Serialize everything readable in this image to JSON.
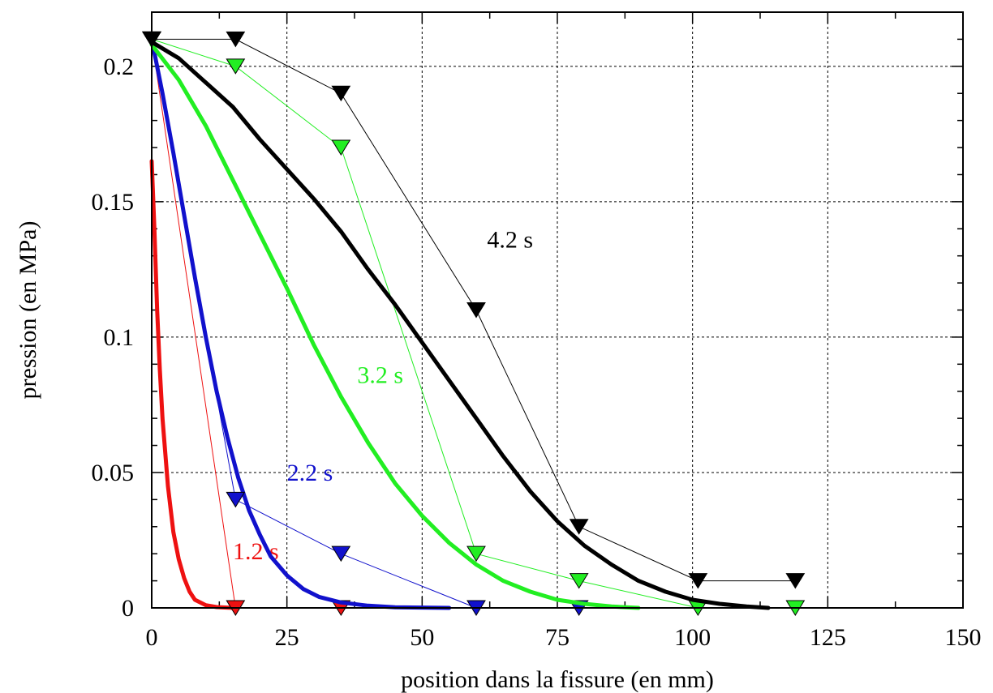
{
  "chart_data": {
    "type": "line",
    "xlabel": "position dans la fissure (en mm)",
    "ylabel": "pression (en MPa)",
    "xlim": [
      0,
      150
    ],
    "ylim": [
      0,
      0.22
    ],
    "xticks": [
      0,
      25,
      50,
      75,
      100,
      125,
      150
    ],
    "xtick_labels": [
      "0",
      "25",
      "50",
      "75",
      "100",
      "125",
      "150"
    ],
    "yticks": [
      0,
      0.05,
      0.1,
      0.15,
      0.2
    ],
    "ytick_labels": [
      "0",
      "0.05",
      "0.1",
      "0.15",
      "0.2"
    ],
    "grid": true,
    "series": [
      {
        "name": "1.2 s",
        "label": "1.2 s",
        "label_at": [
          15,
          0.018
        ],
        "color": "#ee1111",
        "curve": [
          [
            0,
            0.165
          ],
          [
            0.5,
            0.14
          ],
          [
            1,
            0.11
          ],
          [
            1.5,
            0.088
          ],
          [
            2,
            0.07
          ],
          [
            3,
            0.045
          ],
          [
            4,
            0.028
          ],
          [
            5,
            0.018
          ],
          [
            6,
            0.011
          ],
          [
            7,
            0.006
          ],
          [
            8,
            0.003
          ],
          [
            10,
            0.001
          ],
          [
            12,
            0.0003
          ],
          [
            15,
            0
          ]
        ],
        "markers": [
          [
            0,
            0.21
          ],
          [
            15.5,
            0
          ],
          [
            35,
            0
          ]
        ],
        "marker_line": [
          [
            0,
            0.21
          ],
          [
            15.5,
            0
          ]
        ]
      },
      {
        "name": "2.2 s",
        "label": "2.2 s",
        "label_at": [
          25,
          0.047
        ],
        "color": "#1111cc",
        "curve": [
          [
            0,
            0.21
          ],
          [
            2,
            0.19
          ],
          [
            4,
            0.168
          ],
          [
            6,
            0.145
          ],
          [
            8,
            0.122
          ],
          [
            10,
            0.1
          ],
          [
            12,
            0.08
          ],
          [
            14,
            0.063
          ],
          [
            16,
            0.048
          ],
          [
            18,
            0.036
          ],
          [
            20,
            0.027
          ],
          [
            22,
            0.019
          ],
          [
            25,
            0.012
          ],
          [
            28,
            0.007
          ],
          [
            31,
            0.004
          ],
          [
            35,
            0.002
          ],
          [
            40,
            0.0008
          ],
          [
            45,
            0.0002
          ],
          [
            55,
            0
          ]
        ],
        "markers": [
          [
            0,
            0.21
          ],
          [
            15.5,
            0.04
          ],
          [
            35,
            0.02
          ],
          [
            60,
            0
          ],
          [
            79,
            0
          ]
        ],
        "marker_line": [
          [
            0,
            0.21
          ],
          [
            15.5,
            0.04
          ],
          [
            35,
            0.02
          ],
          [
            60,
            0
          ]
        ]
      },
      {
        "name": "3.2 s",
        "label": "3.2 s",
        "label_at": [
          38,
          0.083
        ],
        "color": "#22ee22",
        "curve": [
          [
            0,
            0.208
          ],
          [
            5,
            0.195
          ],
          [
            10,
            0.178
          ],
          [
            15,
            0.158
          ],
          [
            20,
            0.138
          ],
          [
            25,
            0.118
          ],
          [
            30,
            0.097
          ],
          [
            35,
            0.078
          ],
          [
            40,
            0.061
          ],
          [
            45,
            0.046
          ],
          [
            50,
            0.034
          ],
          [
            55,
            0.024
          ],
          [
            60,
            0.016
          ],
          [
            65,
            0.01
          ],
          [
            70,
            0.006
          ],
          [
            75,
            0.003
          ],
          [
            80,
            0.0015
          ],
          [
            85,
            0.0005
          ],
          [
            90,
            0
          ]
        ],
        "markers": [
          [
            0,
            0.21
          ],
          [
            15.5,
            0.2
          ],
          [
            35,
            0.17
          ],
          [
            60,
            0.02
          ],
          [
            79,
            0.01
          ],
          [
            101,
            0
          ],
          [
            119,
            0
          ]
        ],
        "marker_line": [
          [
            0,
            0.21
          ],
          [
            15.5,
            0.2
          ],
          [
            35,
            0.17
          ],
          [
            60,
            0.02
          ],
          [
            79,
            0.01
          ],
          [
            101,
            0
          ]
        ]
      },
      {
        "name": "4.2 s",
        "label": "4.2 s",
        "label_at": [
          62,
          0.133
        ],
        "color": "#000000",
        "curve": [
          [
            0,
            0.209
          ],
          [
            5,
            0.203
          ],
          [
            10,
            0.194
          ],
          [
            15,
            0.185
          ],
          [
            20,
            0.173
          ],
          [
            25,
            0.162
          ],
          [
            30,
            0.151
          ],
          [
            35,
            0.139
          ],
          [
            40,
            0.125
          ],
          [
            45,
            0.112
          ],
          [
            50,
            0.098
          ],
          [
            55,
            0.084
          ],
          [
            60,
            0.07
          ],
          [
            65,
            0.056
          ],
          [
            70,
            0.043
          ],
          [
            75,
            0.032
          ],
          [
            80,
            0.023
          ],
          [
            85,
            0.016
          ],
          [
            90,
            0.01
          ],
          [
            95,
            0.006
          ],
          [
            100,
            0.003
          ],
          [
            105,
            0.0015
          ],
          [
            110,
            0.0005
          ],
          [
            114,
            0
          ]
        ],
        "markers": [
          [
            0,
            0.21
          ],
          [
            15.5,
            0.21
          ],
          [
            35,
            0.19
          ],
          [
            60,
            0.11
          ],
          [
            79,
            0.03
          ],
          [
            101,
            0.01
          ],
          [
            119,
            0.01
          ]
        ],
        "marker_line": [
          [
            0,
            0.21
          ],
          [
            15.5,
            0.21
          ],
          [
            35,
            0.19
          ],
          [
            60,
            0.11
          ],
          [
            79,
            0.03
          ],
          [
            101,
            0.01
          ],
          [
            119,
            0.01
          ]
        ]
      }
    ]
  }
}
